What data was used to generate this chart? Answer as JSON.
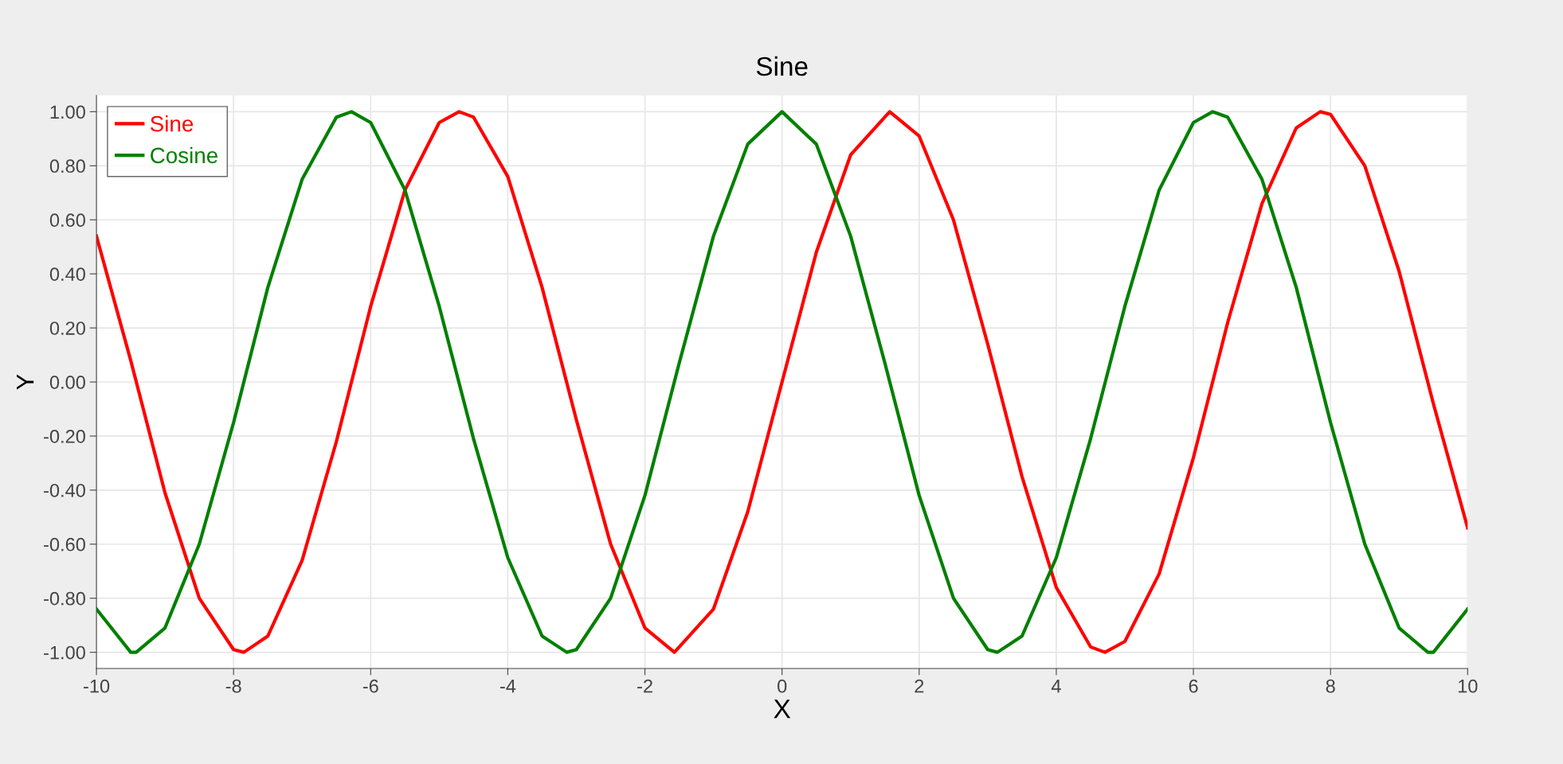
{
  "chart_data": {
    "type": "line",
    "title": "Sine",
    "xlabel": "X",
    "ylabel": "Y",
    "xlim": [
      -10,
      10
    ],
    "xticks": [
      -10,
      -8,
      -6,
      -4,
      -2,
      0,
      2,
      4,
      6,
      8,
      10
    ],
    "ylim": [
      -1.06,
      1.06
    ],
    "yticks": [
      {
        "value": -1,
        "label": "-1.00"
      },
      {
        "value": -0.8,
        "label": "-0.80"
      },
      {
        "value": -0.6,
        "label": "-0.60"
      },
      {
        "value": -0.4,
        "label": "-0.40"
      },
      {
        "value": -0.2,
        "label": "-0.20"
      },
      {
        "value": 0,
        "label": "0.00"
      },
      {
        "value": 0.2,
        "label": "0.20"
      },
      {
        "value": 0.4,
        "label": "0.40"
      },
      {
        "value": 0.6,
        "label": "0.60"
      },
      {
        "value": 0.8,
        "label": "0.80"
      },
      {
        "value": 1,
        "label": "1.00"
      }
    ],
    "grid": true,
    "legend": "top left",
    "marker": "none",
    "line_style": "solid",
    "series": [
      {
        "name": "Sine",
        "color": "#ff0000",
        "x": [
          -10,
          -9.5,
          -9,
          -8.5,
          -8,
          -7.85,
          -7.5,
          -7,
          -6.5,
          -6,
          -5.5,
          -5,
          -4.71,
          -4.5,
          -4,
          -3.5,
          -3,
          -2.5,
          -2,
          -1.57,
          -1,
          -0.5,
          0,
          0.5,
          1,
          1.57,
          2,
          2.5,
          3,
          3.5,
          4,
          4.5,
          4.71,
          5,
          5.5,
          6,
          6.5,
          7,
          7.5,
          7.85,
          8,
          8.5,
          9,
          9.5,
          10
        ],
        "values": [
          0.54,
          0.08,
          -0.41,
          -0.8,
          -0.99,
          -1,
          -0.94,
          -0.66,
          -0.22,
          0.28,
          0.71,
          0.96,
          1,
          0.98,
          0.76,
          0.35,
          -0.14,
          -0.6,
          -0.91,
          -1,
          -0.84,
          -0.48,
          0,
          0.48,
          0.84,
          1,
          0.91,
          0.6,
          0.14,
          -0.35,
          -0.76,
          -0.98,
          -1,
          -0.96,
          -0.71,
          -0.28,
          0.22,
          0.66,
          0.94,
          1,
          0.99,
          0.8,
          0.41,
          -0.08,
          -0.54
        ]
      },
      {
        "name": "Cosine",
        "color": "#008000",
        "x": [
          -10,
          -9.5,
          -9.42,
          -9,
          -8.5,
          -8,
          -7.5,
          -7,
          -6.5,
          -6.28,
          -6,
          -5.5,
          -5,
          -4.5,
          -4,
          -3.5,
          -3.14,
          -3,
          -2.5,
          -2,
          -1.5,
          -1,
          -0.5,
          0,
          0.5,
          1,
          1.5,
          2,
          2.5,
          3,
          3.14,
          3.5,
          4,
          4.5,
          5,
          5.5,
          6,
          6.28,
          6.5,
          7,
          7.5,
          8,
          8.5,
          9,
          9.42,
          9.5,
          10
        ],
        "values": [
          -0.84,
          -1.0,
          -1,
          -0.91,
          -0.6,
          -0.15,
          0.35,
          0.75,
          0.98,
          1,
          0.96,
          0.71,
          0.28,
          -0.21,
          -0.65,
          -0.94,
          -1,
          -0.99,
          -0.8,
          -0.42,
          0.07,
          0.54,
          0.88,
          1,
          0.88,
          0.54,
          0.07,
          -0.42,
          -0.8,
          -0.99,
          -1,
          -0.94,
          -0.65,
          -0.21,
          0.28,
          0.71,
          0.96,
          1,
          0.98,
          0.75,
          0.35,
          -0.15,
          -0.6,
          -0.91,
          -1,
          -1.0,
          -0.84
        ]
      }
    ]
  }
}
